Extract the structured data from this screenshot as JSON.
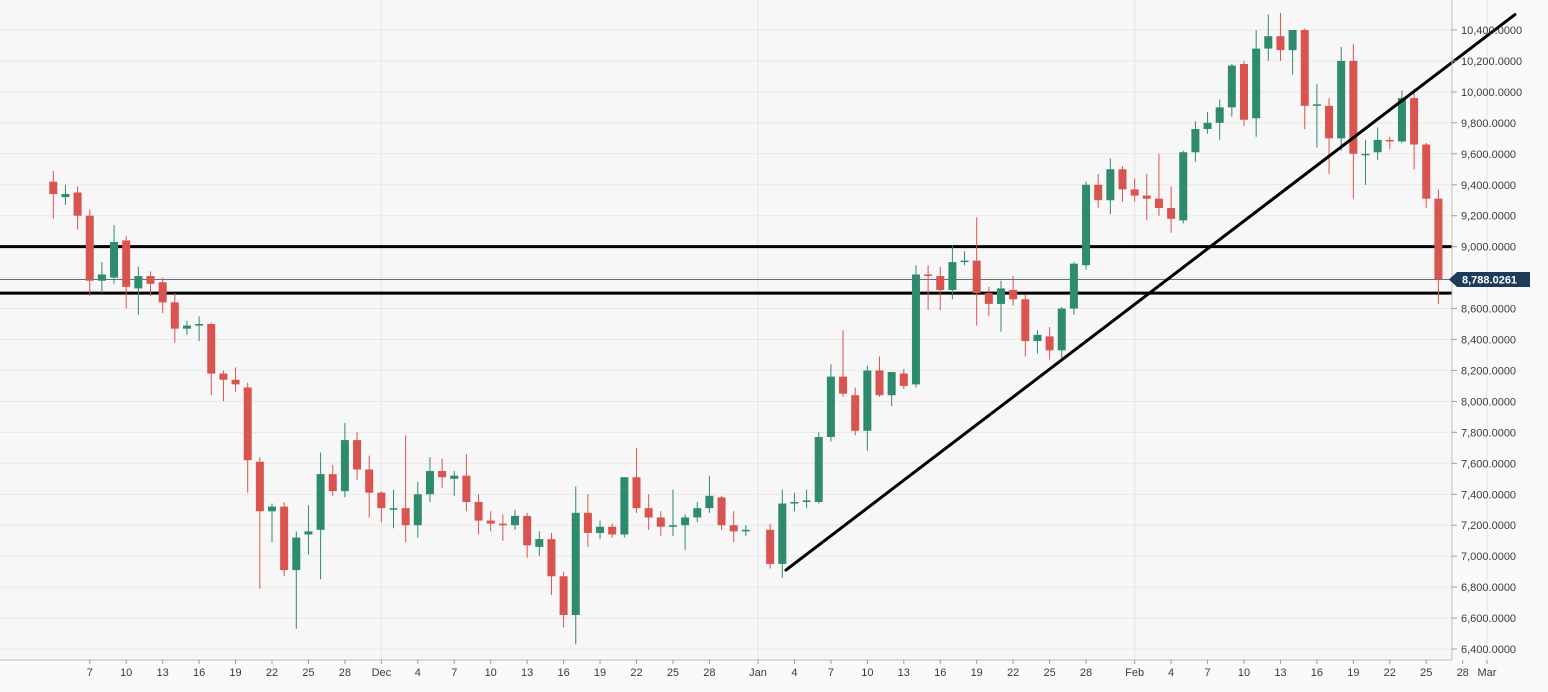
{
  "chart_data": {
    "type": "candlestick",
    "colors": {
      "up": "#2e8b6d",
      "down": "#d9534f",
      "grid": "#e9e9e9",
      "current_price_line": "#5c6f85",
      "price_tag_bg": "#1f3b5a",
      "lines": "#000000"
    },
    "y_axis": {
      "range": [
        6400,
        10550
      ],
      "tick_labels": [
        "10,400.0000",
        "10,200.0000",
        "10,000.0000",
        "9,800.0000",
        "9,600.0000",
        "9,400.0000",
        "9,200.0000",
        "9,000.0000",
        "8,800.0000",
        "8,600.0000",
        "8,400.0000",
        "8,200.0000",
        "8,000.0000",
        "7,800.0000",
        "7,600.0000",
        "7,400.0000",
        "7,200.0000",
        "7,000.0000",
        "6,800.0000",
        "6,600.0000",
        "6,400.0000"
      ],
      "tick_values": [
        10400,
        10200,
        10000,
        9800,
        9600,
        9400,
        9200,
        9000,
        8800,
        8600,
        8400,
        8200,
        8000,
        7800,
        7600,
        7400,
        7200,
        7000,
        6800,
        6600,
        6400
      ]
    },
    "x_axis": {
      "labels": [
        {
          "text": "7",
          "x": 7
        },
        {
          "text": "10",
          "x": 10
        },
        {
          "text": "13",
          "x": 13
        },
        {
          "text": "16",
          "x": 16
        },
        {
          "text": "19",
          "x": 19
        },
        {
          "text": "22",
          "x": 22
        },
        {
          "text": "25",
          "x": 25
        },
        {
          "text": "28",
          "x": 28
        },
        {
          "text": "Dec",
          "x": 31
        },
        {
          "text": "4",
          "x": 34
        },
        {
          "text": "7",
          "x": 37
        },
        {
          "text": "10",
          "x": 40
        },
        {
          "text": "13",
          "x": 43
        },
        {
          "text": "16",
          "x": 46
        },
        {
          "text": "19",
          "x": 49
        },
        {
          "text": "22",
          "x": 52
        },
        {
          "text": "25",
          "x": 55
        },
        {
          "text": "28",
          "x": 58
        },
        {
          "text": "Jan",
          "x": 62
        },
        {
          "text": "4",
          "x": 65
        },
        {
          "text": "7",
          "x": 68
        },
        {
          "text": "10",
          "x": 71
        },
        {
          "text": "13",
          "x": 74
        },
        {
          "text": "16",
          "x": 77
        },
        {
          "text": "19",
          "x": 80
        },
        {
          "text": "22",
          "x": 83
        },
        {
          "text": "25",
          "x": 86
        },
        {
          "text": "28",
          "x": 89
        },
        {
          "text": "Feb",
          "x": 93
        },
        {
          "text": "4",
          "x": 96
        },
        {
          "text": "7",
          "x": 99
        },
        {
          "text": "10",
          "x": 102
        },
        {
          "text": "13",
          "x": 105
        },
        {
          "text": "16",
          "x": 108
        },
        {
          "text": "19",
          "x": 111
        },
        {
          "text": "22",
          "x": 114
        },
        {
          "text": "25",
          "x": 117
        },
        {
          "text": "28",
          "x": 120
        },
        {
          "text": "Mar",
          "x": 122
        }
      ],
      "major_gridlines_at": [
        31,
        62,
        93,
        122
      ]
    },
    "current_price": {
      "value": 8788.0261,
      "label": "8,788.0261"
    },
    "horizontal_lines": [
      9000,
      8700
    ],
    "trendlines": [
      {
        "from": {
          "x": 64.3,
          "y": 6910
        },
        "to": {
          "x": 124.3,
          "y": 10500
        }
      }
    ],
    "candles": [
      {
        "x": 4,
        "o": 9420,
        "h": 9490,
        "l": 9180,
        "c": 9340
      },
      {
        "x": 5,
        "o": 9320,
        "h": 9400,
        "l": 9270,
        "c": 9340
      },
      {
        "x": 6,
        "o": 9350,
        "h": 9390,
        "l": 9110,
        "c": 9200
      },
      {
        "x": 7,
        "o": 9200,
        "h": 9240,
        "l": 8680,
        "c": 8780
      },
      {
        "x": 8,
        "o": 8780,
        "h": 8900,
        "l": 8700,
        "c": 8820
      },
      {
        "x": 9,
        "o": 8800,
        "h": 9140,
        "l": 8760,
        "c": 9030
      },
      {
        "x": 10,
        "o": 9040,
        "h": 9070,
        "l": 8600,
        "c": 8740
      },
      {
        "x": 11,
        "o": 8730,
        "h": 8870,
        "l": 8560,
        "c": 8810
      },
      {
        "x": 12,
        "o": 8810,
        "h": 8840,
        "l": 8680,
        "c": 8760
      },
      {
        "x": 13,
        "o": 8770,
        "h": 8800,
        "l": 8570,
        "c": 8640
      },
      {
        "x": 14,
        "o": 8640,
        "h": 8700,
        "l": 8380,
        "c": 8470
      },
      {
        "x": 15,
        "o": 8470,
        "h": 8520,
        "l": 8430,
        "c": 8490
      },
      {
        "x": 16,
        "o": 8490,
        "h": 8550,
        "l": 8390,
        "c": 8500
      },
      {
        "x": 17,
        "o": 8500,
        "h": 8510,
        "l": 8040,
        "c": 8180
      },
      {
        "x": 18,
        "o": 8180,
        "h": 8200,
        "l": 8000,
        "c": 8140
      },
      {
        "x": 19,
        "o": 8140,
        "h": 8220,
        "l": 8060,
        "c": 8110
      },
      {
        "x": 20,
        "o": 8090,
        "h": 8120,
        "l": 7410,
        "c": 7620
      },
      {
        "x": 21,
        "o": 7610,
        "h": 7640,
        "l": 6790,
        "c": 7290
      },
      {
        "x": 22,
        "o": 7290,
        "h": 7340,
        "l": 7090,
        "c": 7320
      },
      {
        "x": 23,
        "o": 7320,
        "h": 7350,
        "l": 6870,
        "c": 6910
      },
      {
        "x": 24,
        "o": 6910,
        "h": 7160,
        "l": 6530,
        "c": 7120
      },
      {
        "x": 25,
        "o": 7140,
        "h": 7330,
        "l": 7010,
        "c": 7160
      },
      {
        "x": 26,
        "o": 7170,
        "h": 7670,
        "l": 6850,
        "c": 7530
      },
      {
        "x": 27,
        "o": 7530,
        "h": 7590,
        "l": 7390,
        "c": 7420
      },
      {
        "x": 28,
        "o": 7420,
        "h": 7860,
        "l": 7380,
        "c": 7750
      },
      {
        "x": 29,
        "o": 7750,
        "h": 7800,
        "l": 7490,
        "c": 7560
      },
      {
        "x": 30,
        "o": 7560,
        "h": 7650,
        "l": 7250,
        "c": 7410
      },
      {
        "x": 31,
        "o": 7410,
        "h": 7420,
        "l": 7220,
        "c": 7310
      },
      {
        "x": 32,
        "o": 7300,
        "h": 7430,
        "l": 7180,
        "c": 7310
      },
      {
        "x": 33,
        "o": 7310,
        "h": 7780,
        "l": 7090,
        "c": 7200
      },
      {
        "x": 34,
        "o": 7200,
        "h": 7480,
        "l": 7120,
        "c": 7400
      },
      {
        "x": 35,
        "o": 7400,
        "h": 7640,
        "l": 7350,
        "c": 7550
      },
      {
        "x": 36,
        "o": 7550,
        "h": 7630,
        "l": 7440,
        "c": 7510
      },
      {
        "x": 37,
        "o": 7500,
        "h": 7550,
        "l": 7390,
        "c": 7520
      },
      {
        "x": 38,
        "o": 7520,
        "h": 7660,
        "l": 7290,
        "c": 7350
      },
      {
        "x": 39,
        "o": 7350,
        "h": 7400,
        "l": 7140,
        "c": 7230
      },
      {
        "x": 40,
        "o": 7230,
        "h": 7290,
        "l": 7160,
        "c": 7210
      },
      {
        "x": 41,
        "o": 7210,
        "h": 7270,
        "l": 7100,
        "c": 7200
      },
      {
        "x": 42,
        "o": 7200,
        "h": 7300,
        "l": 7170,
        "c": 7260
      },
      {
        "x": 43,
        "o": 7260,
        "h": 7280,
        "l": 6990,
        "c": 7070
      },
      {
        "x": 44,
        "o": 7060,
        "h": 7160,
        "l": 7000,
        "c": 7110
      },
      {
        "x": 45,
        "o": 7110,
        "h": 7150,
        "l": 6750,
        "c": 6870
      },
      {
        "x": 46,
        "o": 6870,
        "h": 6900,
        "l": 6540,
        "c": 6620
      },
      {
        "x": 47,
        "o": 6620,
        "h": 7450,
        "l": 6430,
        "c": 7280
      },
      {
        "x": 48,
        "o": 7280,
        "h": 7400,
        "l": 7060,
        "c": 7150
      },
      {
        "x": 49,
        "o": 7150,
        "h": 7230,
        "l": 7110,
        "c": 7190
      },
      {
        "x": 50,
        "o": 7190,
        "h": 7210,
        "l": 7120,
        "c": 7140
      },
      {
        "x": 51,
        "o": 7140,
        "h": 7510,
        "l": 7120,
        "c": 7510
      },
      {
        "x": 52,
        "o": 7510,
        "h": 7700,
        "l": 7280,
        "c": 7310
      },
      {
        "x": 53,
        "o": 7310,
        "h": 7400,
        "l": 7170,
        "c": 7250
      },
      {
        "x": 54,
        "o": 7250,
        "h": 7290,
        "l": 7130,
        "c": 7190
      },
      {
        "x": 55,
        "o": 7190,
        "h": 7430,
        "l": 7130,
        "c": 7200
      },
      {
        "x": 56,
        "o": 7200,
        "h": 7270,
        "l": 7040,
        "c": 7250
      },
      {
        "x": 57,
        "o": 7250,
        "h": 7350,
        "l": 7220,
        "c": 7310
      },
      {
        "x": 58,
        "o": 7310,
        "h": 7520,
        "l": 7280,
        "c": 7390
      },
      {
        "x": 59,
        "o": 7380,
        "h": 7390,
        "l": 7170,
        "c": 7200
      },
      {
        "x": 60,
        "o": 7200,
        "h": 7290,
        "l": 7090,
        "c": 7160
      },
      {
        "x": 61,
        "o": 7160,
        "h": 7200,
        "l": 7130,
        "c": 7170
      },
      {
        "x": 63,
        "o": 7170,
        "h": 7210,
        "l": 6920,
        "c": 6950
      },
      {
        "x": 64,
        "o": 6950,
        "h": 7430,
        "l": 6860,
        "c": 7340
      },
      {
        "x": 65,
        "o": 7340,
        "h": 7410,
        "l": 7290,
        "c": 7350
      },
      {
        "x": 66,
        "o": 7350,
        "h": 7430,
        "l": 7310,
        "c": 7360
      },
      {
        "x": 67,
        "o": 7350,
        "h": 7800,
        "l": 7340,
        "c": 7770
      },
      {
        "x": 68,
        "o": 7770,
        "h": 8240,
        "l": 7740,
        "c": 8160
      },
      {
        "x": 69,
        "o": 8160,
        "h": 8460,
        "l": 8030,
        "c": 8050
      },
      {
        "x": 70,
        "o": 8040,
        "h": 8090,
        "l": 7780,
        "c": 7810
      },
      {
        "x": 71,
        "o": 7810,
        "h": 8230,
        "l": 7680,
        "c": 8200
      },
      {
        "x": 72,
        "o": 8200,
        "h": 8290,
        "l": 8030,
        "c": 8040
      },
      {
        "x": 73,
        "o": 8040,
        "h": 8190,
        "l": 7970,
        "c": 8190
      },
      {
        "x": 74,
        "o": 8180,
        "h": 8210,
        "l": 8080,
        "c": 8100
      },
      {
        "x": 75,
        "o": 8110,
        "h": 8880,
        "l": 8090,
        "c": 8820
      },
      {
        "x": 76,
        "o": 8820,
        "h": 8880,
        "l": 8590,
        "c": 8810
      },
      {
        "x": 77,
        "o": 8810,
        "h": 8870,
        "l": 8590,
        "c": 8720
      },
      {
        "x": 78,
        "o": 8720,
        "h": 9010,
        "l": 8660,
        "c": 8900
      },
      {
        "x": 79,
        "o": 8900,
        "h": 8970,
        "l": 8880,
        "c": 8910
      },
      {
        "x": 80,
        "o": 8910,
        "h": 9190,
        "l": 8490,
        "c": 8700
      },
      {
        "x": 81,
        "o": 8700,
        "h": 8740,
        "l": 8550,
        "c": 8630
      },
      {
        "x": 82,
        "o": 8630,
        "h": 8780,
        "l": 8450,
        "c": 8730
      },
      {
        "x": 83,
        "o": 8720,
        "h": 8810,
        "l": 8620,
        "c": 8660
      },
      {
        "x": 84,
        "o": 8660,
        "h": 8690,
        "l": 8290,
        "c": 8390
      },
      {
        "x": 85,
        "o": 8390,
        "h": 8460,
        "l": 8310,
        "c": 8430
      },
      {
        "x": 86,
        "o": 8420,
        "h": 8480,
        "l": 8270,
        "c": 8330
      },
      {
        "x": 87,
        "o": 8330,
        "h": 8610,
        "l": 8280,
        "c": 8600
      },
      {
        "x": 88,
        "o": 8600,
        "h": 8900,
        "l": 8560,
        "c": 8890
      },
      {
        "x": 89,
        "o": 8880,
        "h": 9420,
        "l": 8850,
        "c": 9400
      },
      {
        "x": 90,
        "o": 9400,
        "h": 9470,
        "l": 9250,
        "c": 9300
      },
      {
        "x": 91,
        "o": 9300,
        "h": 9570,
        "l": 9210,
        "c": 9500
      },
      {
        "x": 92,
        "o": 9500,
        "h": 9520,
        "l": 9290,
        "c": 9370
      },
      {
        "x": 93,
        "o": 9370,
        "h": 9440,
        "l": 9290,
        "c": 9330
      },
      {
        "x": 94,
        "o": 9330,
        "h": 9470,
        "l": 9170,
        "c": 9310
      },
      {
        "x": 95,
        "o": 9310,
        "h": 9600,
        "l": 9200,
        "c": 9250
      },
      {
        "x": 96,
        "o": 9250,
        "h": 9390,
        "l": 9090,
        "c": 9180
      },
      {
        "x": 97,
        "o": 9170,
        "h": 9620,
        "l": 9150,
        "c": 9610
      },
      {
        "x": 98,
        "o": 9610,
        "h": 9810,
        "l": 9550,
        "c": 9760
      },
      {
        "x": 99,
        "o": 9760,
        "h": 9870,
        "l": 9730,
        "c": 9800
      },
      {
        "x": 100,
        "o": 9800,
        "h": 9950,
        "l": 9690,
        "c": 9900
      },
      {
        "x": 101,
        "o": 9900,
        "h": 10180,
        "l": 9840,
        "c": 10170
      },
      {
        "x": 102,
        "o": 10180,
        "h": 10200,
        "l": 9780,
        "c": 9820
      },
      {
        "x": 103,
        "o": 9830,
        "h": 10400,
        "l": 9710,
        "c": 10280
      },
      {
        "x": 104,
        "o": 10280,
        "h": 10500,
        "l": 10200,
        "c": 10360
      },
      {
        "x": 105,
        "o": 10360,
        "h": 10510,
        "l": 10200,
        "c": 10270
      },
      {
        "x": 106,
        "o": 10270,
        "h": 10400,
        "l": 10110,
        "c": 10400
      },
      {
        "x": 107,
        "o": 10400,
        "h": 10410,
        "l": 9760,
        "c": 9910
      },
      {
        "x": 108,
        "o": 9910,
        "h": 10050,
        "l": 9640,
        "c": 9920
      },
      {
        "x": 109,
        "o": 9910,
        "h": 9960,
        "l": 9470,
        "c": 9700
      },
      {
        "x": 110,
        "o": 9700,
        "h": 10290,
        "l": 9620,
        "c": 10200
      },
      {
        "x": 111,
        "o": 10200,
        "h": 10310,
        "l": 9310,
        "c": 9600
      },
      {
        "x": 112,
        "o": 9600,
        "h": 9690,
        "l": 9400,
        "c": 9600
      },
      {
        "x": 113,
        "o": 9610,
        "h": 9770,
        "l": 9560,
        "c": 9690
      },
      {
        "x": 114,
        "o": 9690,
        "h": 9710,
        "l": 9630,
        "c": 9680
      },
      {
        "x": 115,
        "o": 9680,
        "h": 10010,
        "l": 9670,
        "c": 9960
      },
      {
        "x": 116,
        "o": 9960,
        "h": 10020,
        "l": 9500,
        "c": 9660
      },
      {
        "x": 117,
        "o": 9660,
        "h": 9670,
        "l": 9250,
        "c": 9310
      },
      {
        "x": 118,
        "o": 9310,
        "h": 9370,
        "l": 8630,
        "c": 8788
      }
    ]
  }
}
